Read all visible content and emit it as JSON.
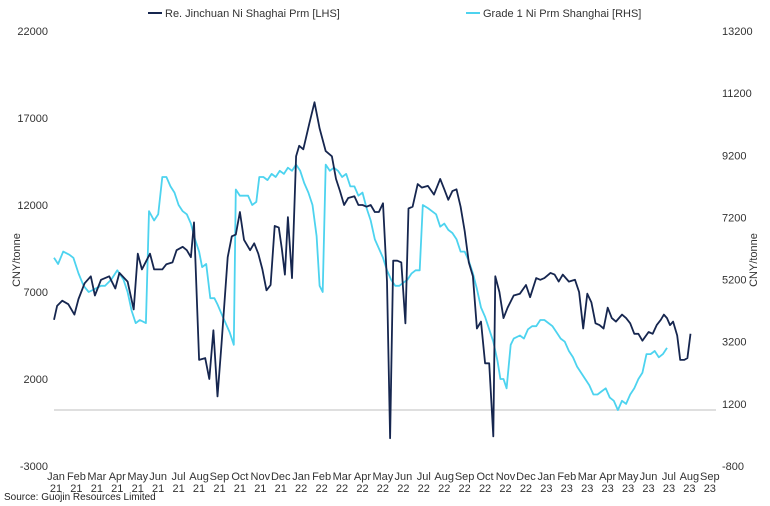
{
  "chart_data": {
    "type": "line",
    "source": "Source: Guojin Resources Limited",
    "left_axis": {
      "title": "CNY/tonne",
      "range": [
        -3000,
        22000
      ],
      "ticks": [
        22000,
        17000,
        12000,
        7000,
        2000,
        -3000
      ]
    },
    "right_axis": {
      "title": "CNY/tonne",
      "range": [
        -800,
        13200
      ],
      "ticks": [
        13200,
        11200,
        9200,
        7200,
        5200,
        3200,
        1200,
        -800
      ]
    },
    "x_ticks": [
      [
        "Jan",
        "21"
      ],
      [
        "Feb",
        "21"
      ],
      [
        "Mar",
        "21"
      ],
      [
        "Apr",
        "21"
      ],
      [
        "May",
        "21"
      ],
      [
        "Jun",
        "21"
      ],
      [
        "Jul",
        "21"
      ],
      [
        "Aug",
        "21"
      ],
      [
        "Sep",
        "21"
      ],
      [
        "Oct",
        "21"
      ],
      [
        "Nov",
        "21"
      ],
      [
        "Dec",
        "21"
      ],
      [
        "Jan",
        "22"
      ],
      [
        "Feb",
        "22"
      ],
      [
        "Mar",
        "22"
      ],
      [
        "Apr",
        "22"
      ],
      [
        "May",
        "22"
      ],
      [
        "Jun",
        "22"
      ],
      [
        "Jul",
        "22"
      ],
      [
        "Aug",
        "22"
      ],
      [
        "Sep",
        "22"
      ],
      [
        "Oct",
        "22"
      ],
      [
        "Nov",
        "22"
      ],
      [
        "Dec",
        "22"
      ],
      [
        "Jan",
        "23"
      ],
      [
        "Feb",
        "23"
      ],
      [
        "Mar",
        "23"
      ],
      [
        "Apr",
        "23"
      ],
      [
        "May",
        "23"
      ],
      [
        "Jun",
        "23"
      ],
      [
        "Jul",
        "23"
      ],
      [
        "Aug",
        "23"
      ],
      [
        "Sep",
        "23"
      ]
    ],
    "x_range": [
      0,
      32.4
    ],
    "legend_position": "top",
    "grid": false,
    "series": [
      {
        "name": "Re. Jinchuan Ni Shaghai Prm [LHS]",
        "axis": "left",
        "color": "#16264f",
        "points": [
          [
            0,
            5400
          ],
          [
            0.15,
            6200
          ],
          [
            0.4,
            6500
          ],
          [
            0.7,
            6300
          ],
          [
            1.0,
            5700
          ],
          [
            1.2,
            6600
          ],
          [
            1.5,
            7500
          ],
          [
            1.8,
            7900
          ],
          [
            2.0,
            6800
          ],
          [
            2.3,
            7700
          ],
          [
            2.7,
            7900
          ],
          [
            3.0,
            7200
          ],
          [
            3.2,
            8100
          ],
          [
            3.6,
            7600
          ],
          [
            3.9,
            6000
          ],
          [
            4.1,
            9200
          ],
          [
            4.3,
            8300
          ],
          [
            4.7,
            9200
          ],
          [
            4.9,
            8300
          ],
          [
            5.3,
            8300
          ],
          [
            5.5,
            8600
          ],
          [
            5.8,
            8700
          ],
          [
            6.0,
            9400
          ],
          [
            6.3,
            9600
          ],
          [
            6.5,
            9400
          ],
          [
            6.7,
            9000
          ],
          [
            6.85,
            11000
          ],
          [
            7.1,
            3100
          ],
          [
            7.4,
            3200
          ],
          [
            7.6,
            2000
          ],
          [
            7.8,
            4800
          ],
          [
            8.0,
            1000
          ],
          [
            8.2,
            4000
          ],
          [
            8.5,
            9000
          ],
          [
            8.7,
            10200
          ],
          [
            8.9,
            10300
          ],
          [
            9.1,
            11600
          ],
          [
            9.3,
            10000
          ],
          [
            9.6,
            9400
          ],
          [
            9.8,
            9800
          ],
          [
            10.0,
            9200
          ],
          [
            10.2,
            8300
          ],
          [
            10.4,
            7100
          ],
          [
            10.6,
            7400
          ],
          [
            10.8,
            10800
          ],
          [
            11.0,
            10700
          ],
          [
            11.15,
            9500
          ],
          [
            11.3,
            8000
          ],
          [
            11.45,
            11300
          ],
          [
            11.65,
            7800
          ],
          [
            11.85,
            14800
          ],
          [
            12.0,
            15400
          ],
          [
            12.2,
            15200
          ],
          [
            12.5,
            16700
          ],
          [
            12.75,
            17900
          ],
          [
            13.0,
            16400
          ],
          [
            13.3,
            15100
          ],
          [
            13.6,
            14800
          ],
          [
            13.8,
            13500
          ],
          [
            14.0,
            12800
          ],
          [
            14.2,
            12000
          ],
          [
            14.4,
            12400
          ],
          [
            14.7,
            12500
          ],
          [
            14.9,
            12000
          ],
          [
            15.1,
            12000
          ],
          [
            15.3,
            11900
          ],
          [
            15.5,
            12000
          ],
          [
            15.7,
            11600
          ],
          [
            15.9,
            11600
          ],
          [
            16.1,
            12100
          ],
          [
            16.3,
            7600
          ],
          [
            16.45,
            -1400
          ],
          [
            16.6,
            8800
          ],
          [
            16.8,
            8800
          ],
          [
            17.0,
            8700
          ],
          [
            17.2,
            5200
          ],
          [
            17.35,
            11800
          ],
          [
            17.55,
            11900
          ],
          [
            17.8,
            13200
          ],
          [
            18.0,
            13000
          ],
          [
            18.3,
            13100
          ],
          [
            18.6,
            12600
          ],
          [
            18.9,
            13500
          ],
          [
            19.1,
            12900
          ],
          [
            19.3,
            12300
          ],
          [
            19.5,
            12800
          ],
          [
            19.7,
            12900
          ],
          [
            19.9,
            11900
          ],
          [
            20.1,
            10500
          ],
          [
            20.3,
            8700
          ],
          [
            20.5,
            7900
          ],
          [
            20.7,
            4900
          ],
          [
            20.9,
            5300
          ],
          [
            21.1,
            2900
          ],
          [
            21.3,
            2900
          ],
          [
            21.5,
            -1300
          ],
          [
            21.6,
            7900
          ],
          [
            21.8,
            7000
          ],
          [
            22.0,
            5500
          ],
          [
            22.2,
            6100
          ],
          [
            22.5,
            6800
          ],
          [
            22.8,
            6900
          ],
          [
            23.1,
            7400
          ],
          [
            23.3,
            6700
          ],
          [
            23.6,
            7800
          ],
          [
            23.8,
            7700
          ],
          [
            24.0,
            7800
          ],
          [
            24.3,
            8100
          ],
          [
            24.5,
            8000
          ],
          [
            24.7,
            7600
          ],
          [
            24.9,
            8000
          ],
          [
            25.2,
            7600
          ],
          [
            25.5,
            7700
          ],
          [
            25.7,
            7000
          ],
          [
            25.9,
            4900
          ],
          [
            26.1,
            6900
          ],
          [
            26.3,
            6400
          ],
          [
            26.5,
            5200
          ],
          [
            26.7,
            5100
          ],
          [
            26.9,
            4900
          ],
          [
            27.1,
            6100
          ],
          [
            27.3,
            5500
          ],
          [
            27.5,
            5300
          ],
          [
            27.8,
            5700
          ],
          [
            28.0,
            5500
          ],
          [
            28.2,
            5200
          ],
          [
            28.4,
            4600
          ],
          [
            28.6,
            4600
          ],
          [
            28.8,
            4200
          ],
          [
            29.1,
            4700
          ],
          [
            29.3,
            4600
          ],
          [
            29.5,
            5100
          ],
          [
            29.7,
            5400
          ],
          [
            29.85,
            5700
          ],
          [
            30.0,
            5500
          ],
          [
            30.15,
            5100
          ],
          [
            30.3,
            5300
          ],
          [
            30.5,
            4500
          ],
          [
            30.65,
            3100
          ],
          [
            30.85,
            3100
          ],
          [
            31.0,
            3200
          ],
          [
            31.15,
            4600
          ]
        ]
      },
      {
        "name": "Grade 1 Ni Prm Shanghai [RHS]",
        "axis": "right",
        "color": "#4dd3ef",
        "points": [
          [
            0,
            5900
          ],
          [
            0.2,
            5700
          ],
          [
            0.45,
            6100
          ],
          [
            0.75,
            6000
          ],
          [
            0.95,
            5900
          ],
          [
            1.2,
            5400
          ],
          [
            1.45,
            5000
          ],
          [
            1.7,
            4800
          ],
          [
            2.0,
            4900
          ],
          [
            2.3,
            5000
          ],
          [
            2.5,
            5000
          ],
          [
            2.8,
            5200
          ],
          [
            3.1,
            5500
          ],
          [
            3.4,
            5200
          ],
          [
            3.6,
            4800
          ],
          [
            3.8,
            4200
          ],
          [
            4.0,
            3800
          ],
          [
            4.2,
            3900
          ],
          [
            4.5,
            3800
          ],
          [
            4.65,
            7400
          ],
          [
            4.9,
            7100
          ],
          [
            5.1,
            7300
          ],
          [
            5.3,
            8500
          ],
          [
            5.5,
            8500
          ],
          [
            5.7,
            8200
          ],
          [
            5.9,
            8000
          ],
          [
            6.1,
            7600
          ],
          [
            6.3,
            7400
          ],
          [
            6.5,
            7300
          ],
          [
            6.7,
            7000
          ],
          [
            6.9,
            6500
          ],
          [
            7.1,
            6100
          ],
          [
            7.25,
            5600
          ],
          [
            7.45,
            5700
          ],
          [
            7.65,
            4600
          ],
          [
            7.85,
            4600
          ],
          [
            8.0,
            4400
          ],
          [
            8.2,
            4100
          ],
          [
            8.4,
            3800
          ],
          [
            8.6,
            3500
          ],
          [
            8.8,
            3100
          ],
          [
            8.9,
            8100
          ],
          [
            9.1,
            7900
          ],
          [
            9.3,
            7900
          ],
          [
            9.5,
            7900
          ],
          [
            9.7,
            7600
          ],
          [
            9.9,
            7700
          ],
          [
            10.05,
            8500
          ],
          [
            10.25,
            8500
          ],
          [
            10.45,
            8400
          ],
          [
            10.65,
            8600
          ],
          [
            10.85,
            8500
          ],
          [
            11.05,
            8700
          ],
          [
            11.25,
            8600
          ],
          [
            11.45,
            8800
          ],
          [
            11.65,
            8700
          ],
          [
            11.85,
            8900
          ],
          [
            12.05,
            8700
          ],
          [
            12.25,
            8300
          ],
          [
            12.45,
            8000
          ],
          [
            12.65,
            7600
          ],
          [
            12.85,
            6600
          ],
          [
            13.0,
            5000
          ],
          [
            13.15,
            4800
          ],
          [
            13.3,
            8900
          ],
          [
            13.5,
            8700
          ],
          [
            13.7,
            8800
          ],
          [
            13.9,
            8700
          ],
          [
            14.1,
            8500
          ],
          [
            14.3,
            8600
          ],
          [
            14.5,
            8200
          ],
          [
            14.7,
            8200
          ],
          [
            14.9,
            7900
          ],
          [
            15.1,
            8000
          ],
          [
            15.3,
            7500
          ],
          [
            15.5,
            7100
          ],
          [
            15.7,
            6500
          ],
          [
            15.9,
            6200
          ],
          [
            16.1,
            5900
          ],
          [
            16.3,
            5500
          ],
          [
            16.5,
            5200
          ],
          [
            16.7,
            5000
          ],
          [
            16.9,
            5000
          ],
          [
            17.1,
            5100
          ],
          [
            17.3,
            5200
          ],
          [
            17.5,
            5400
          ],
          [
            17.7,
            5500
          ],
          [
            17.9,
            5500
          ],
          [
            18.05,
            7600
          ],
          [
            18.3,
            7500
          ],
          [
            18.5,
            7400
          ],
          [
            18.7,
            7300
          ],
          [
            18.9,
            6900
          ],
          [
            19.1,
            7000
          ],
          [
            19.3,
            6800
          ],
          [
            19.5,
            6700
          ],
          [
            19.7,
            6500
          ],
          [
            19.9,
            6100
          ],
          [
            20.1,
            6100
          ],
          [
            20.3,
            5800
          ],
          [
            20.5,
            5400
          ],
          [
            20.7,
            4900
          ],
          [
            20.9,
            4300
          ],
          [
            21.1,
            4000
          ],
          [
            21.3,
            3600
          ],
          [
            21.5,
            3200
          ],
          [
            21.7,
            2600
          ],
          [
            21.85,
            2000
          ],
          [
            22.0,
            2000
          ],
          [
            22.15,
            1700
          ],
          [
            22.35,
            3100
          ],
          [
            22.5,
            3300
          ],
          [
            22.8,
            3400
          ],
          [
            23.0,
            3300
          ],
          [
            23.2,
            3600
          ],
          [
            23.4,
            3700
          ],
          [
            23.6,
            3700
          ],
          [
            23.8,
            3900
          ],
          [
            24.0,
            3900
          ],
          [
            24.2,
            3800
          ],
          [
            24.4,
            3700
          ],
          [
            24.6,
            3500
          ],
          [
            24.8,
            3300
          ],
          [
            25.0,
            3200
          ],
          [
            25.2,
            2900
          ],
          [
            25.4,
            2700
          ],
          [
            25.6,
            2400
          ],
          [
            25.8,
            2200
          ],
          [
            26.0,
            2000
          ],
          [
            26.2,
            1800
          ],
          [
            26.4,
            1500
          ],
          [
            26.6,
            1500
          ],
          [
            26.8,
            1600
          ],
          [
            27.0,
            1700
          ],
          [
            27.2,
            1400
          ],
          [
            27.4,
            1300
          ],
          [
            27.6,
            1000
          ],
          [
            27.8,
            1300
          ],
          [
            28.0,
            1200
          ],
          [
            28.2,
            1500
          ],
          [
            28.4,
            1700
          ],
          [
            28.6,
            2000
          ],
          [
            28.8,
            2200
          ],
          [
            29.0,
            2800
          ],
          [
            29.2,
            2800
          ],
          [
            29.4,
            2900
          ],
          [
            29.6,
            2700
          ],
          [
            29.8,
            2800
          ],
          [
            30.0,
            3000
          ]
        ]
      }
    ]
  }
}
